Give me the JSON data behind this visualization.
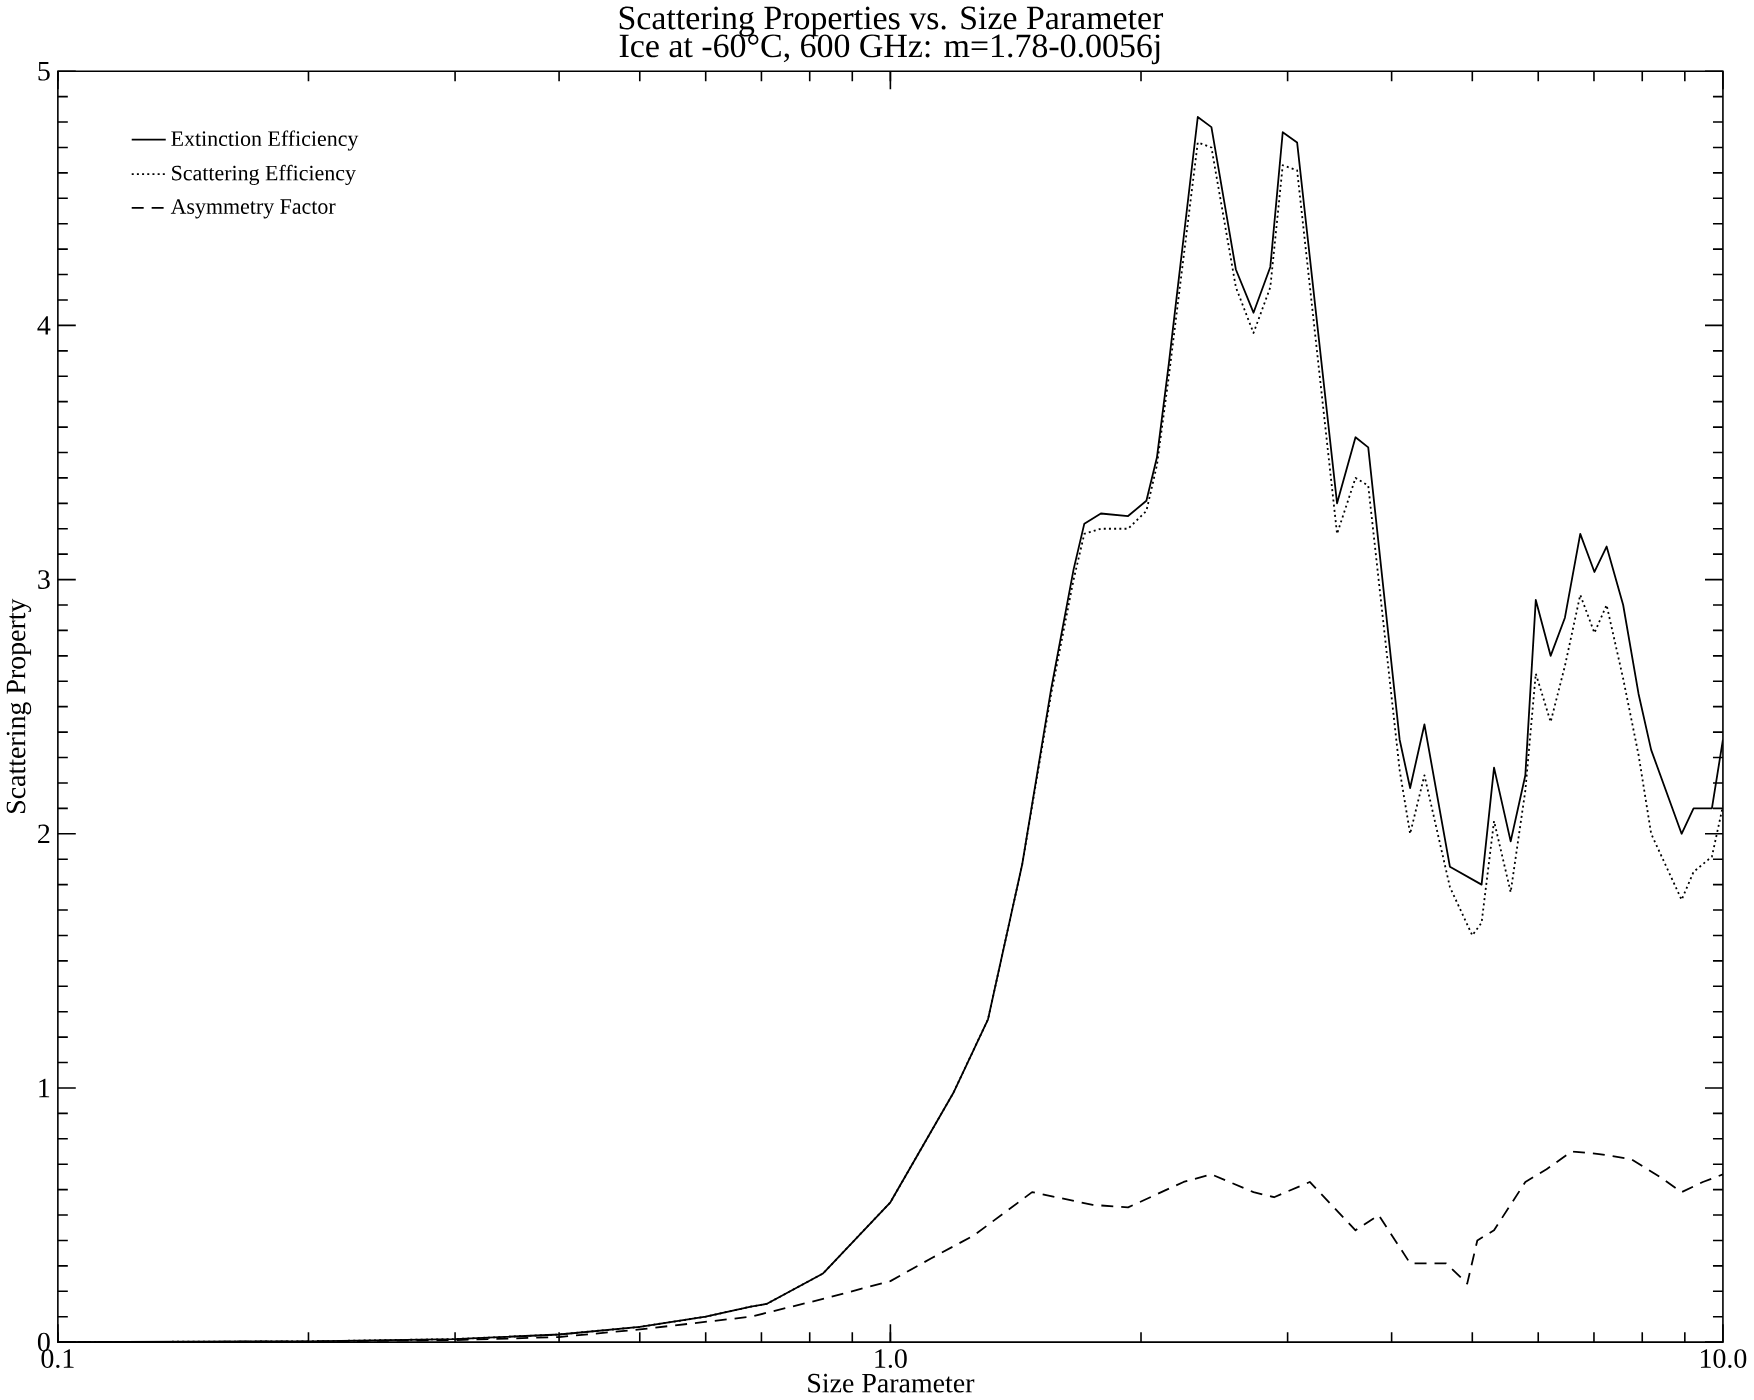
{
  "chart_data": {
    "type": "line",
    "title": "Scattering Properties vs. Size Parameter",
    "subtitle": "Ice at -60°C, 600 GHz: m=1.78-0.0056j",
    "xlabel": "Size Parameter",
    "ylabel": "Scattering Property",
    "log": "x",
    "xlim": [
      0.1,
      10
    ],
    "ylim": [
      0,
      5
    ],
    "xticks": [
      {
        "value": 0.1,
        "label": "0.1"
      },
      {
        "value": 1,
        "label": "1.0"
      },
      {
        "value": 10,
        "label": "10.0"
      }
    ],
    "yticks": [
      0,
      1,
      2,
      3,
      4,
      5
    ],
    "legend": "top left",
    "series": [
      {
        "name": "Extinction Efficiency",
        "color": "#000000",
        "line_style": "solid",
        "x": [
          0.1,
          0.2,
          0.3,
          0.4,
          0.5,
          0.6,
          0.68,
          0.71,
          0.83,
          1.0,
          1.19,
          1.31,
          1.44,
          1.56,
          1.66,
          1.71,
          1.79,
          1.93,
          2.03,
          2.09,
          2.16,
          2.34,
          2.43,
          2.6,
          2.73,
          2.86,
          2.96,
          3.08,
          3.44,
          3.62,
          3.75,
          4.09,
          4.21,
          4.38,
          4.7,
          5.13,
          5.31,
          5.56,
          5.79,
          5.96,
          6.21,
          6.46,
          6.74,
          7.01,
          7.25,
          7.59,
          7.92,
          8.2,
          8.92,
          9.22,
          9.7,
          10
        ],
        "values": [
          0.0,
          0.003,
          0.012,
          0.03,
          0.06,
          0.1,
          0.14,
          0.15,
          0.27,
          0.55,
          0.98,
          1.27,
          1.88,
          2.57,
          3.04,
          3.22,
          3.26,
          3.25,
          3.31,
          3.48,
          3.85,
          4.82,
          4.78,
          4.22,
          4.05,
          4.23,
          4.76,
          4.72,
          3.3,
          3.56,
          3.52,
          2.37,
          2.18,
          2.43,
          1.87,
          1.8,
          2.26,
          1.97,
          2.23,
          2.92,
          2.7,
          2.85,
          3.18,
          3.03,
          3.13,
          2.9,
          2.55,
          2.33,
          2.0,
          2.1,
          2.1,
          2.37
        ]
      },
      {
        "name": "Scattering Efficiency",
        "color": "#000000",
        "line_style": "dotted",
        "x": [
          0.1,
          0.2,
          0.3,
          0.4,
          0.5,
          0.6,
          0.68,
          0.71,
          0.83,
          1.0,
          1.19,
          1.31,
          1.44,
          1.56,
          1.66,
          1.71,
          1.79,
          1.93,
          2.03,
          2.09,
          2.16,
          2.34,
          2.43,
          2.6,
          2.73,
          2.86,
          2.96,
          3.08,
          3.44,
          3.62,
          3.75,
          4.09,
          4.21,
          4.38,
          4.7,
          5.0,
          5.13,
          5.31,
          5.56,
          5.79,
          5.96,
          6.21,
          6.46,
          6.74,
          7.01,
          7.25,
          7.59,
          7.92,
          8.2,
          8.92,
          9.22,
          9.7,
          10
        ],
        "values": [
          0.0,
          0.003,
          0.012,
          0.03,
          0.06,
          0.1,
          0.14,
          0.15,
          0.27,
          0.55,
          0.98,
          1.27,
          1.88,
          2.55,
          3.0,
          3.18,
          3.2,
          3.2,
          3.27,
          3.45,
          3.8,
          4.72,
          4.7,
          4.15,
          3.97,
          4.15,
          4.63,
          4.61,
          3.18,
          3.4,
          3.37,
          2.25,
          2.0,
          2.23,
          1.79,
          1.6,
          1.65,
          2.05,
          1.77,
          2.17,
          2.63,
          2.44,
          2.66,
          2.94,
          2.79,
          2.9,
          2.61,
          2.31,
          2.0,
          1.74,
          1.85,
          1.91,
          2.11
        ]
      },
      {
        "name": "Asymmetry Factor",
        "color": "#000000",
        "line_style": "dashed",
        "x": [
          0.1,
          0.2,
          0.3,
          0.4,
          0.5,
          0.68,
          0.83,
          1.0,
          1.12,
          1.26,
          1.48,
          1.75,
          1.93,
          2.25,
          2.43,
          2.73,
          2.89,
          3.19,
          3.62,
          3.86,
          4.21,
          4.65,
          4.93,
          5.07,
          5.31,
          5.79,
          6.14,
          6.58,
          7.1,
          7.76,
          8.4,
          8.92,
          9.46,
          10
        ],
        "values": [
          0.0,
          0.002,
          0.008,
          0.02,
          0.05,
          0.1,
          0.17,
          0.24,
          0.33,
          0.42,
          0.59,
          0.54,
          0.53,
          0.63,
          0.66,
          0.59,
          0.57,
          0.63,
          0.44,
          0.5,
          0.31,
          0.31,
          0.23,
          0.4,
          0.44,
          0.63,
          0.68,
          0.75,
          0.74,
          0.72,
          0.65,
          0.59,
          0.63,
          0.66
        ]
      }
    ]
  }
}
